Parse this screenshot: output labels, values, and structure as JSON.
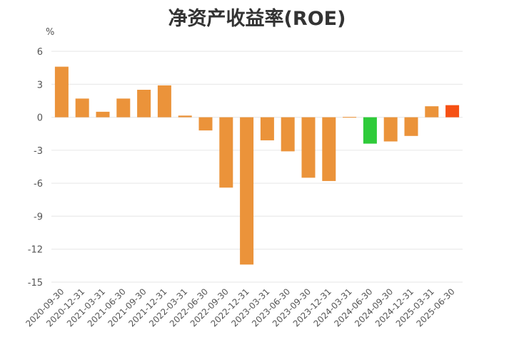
{
  "chart_data": {
    "type": "bar",
    "title": "净资产收益率(ROE)",
    "unit_label": "%",
    "categories": [
      "2020-09-30",
      "2020-12-31",
      "2021-03-31",
      "2021-06-30",
      "2021-09-30",
      "2021-12-31",
      "2022-03-31",
      "2022-06-30",
      "2022-09-30",
      "2022-12-31",
      "2023-03-31",
      "2023-06-30",
      "2023-09-30",
      "2023-12-31",
      "2024-03-31",
      "2024-06-30",
      "2024-09-30",
      "2024-12-31",
      "2025-03-31",
      "2025-06-30"
    ],
    "values": [
      4.6,
      1.7,
      0.5,
      1.7,
      2.5,
      2.9,
      0.15,
      -1.2,
      -6.4,
      -13.4,
      -2.1,
      -3.1,
      -5.5,
      -5.8,
      -0.02,
      -2.4,
      -2.2,
      -1.7,
      1.0,
      1.1
    ],
    "bar_colors": [
      "#EB933A",
      "#EB933A",
      "#EB933A",
      "#EB933A",
      "#EB933A",
      "#EB933A",
      "#EB933A",
      "#EB933A",
      "#EB933A",
      "#EB933A",
      "#EB933A",
      "#EB933A",
      "#EB933A",
      "#EB933A",
      "#EB933A",
      "#2FCB3A",
      "#EB933A",
      "#EB933A",
      "#EB933A",
      "#F65013"
    ],
    "ylim": [
      -15,
      6
    ],
    "yticks": [
      6,
      3,
      0,
      -3,
      -6,
      -9,
      -12,
      -15
    ],
    "ytick_labels": [
      "6",
      "3",
      "0",
      "-3",
      "-6",
      "-9",
      "-12",
      "-15"
    ],
    "grid": true,
    "xlabel": "",
    "ylabel": ""
  }
}
